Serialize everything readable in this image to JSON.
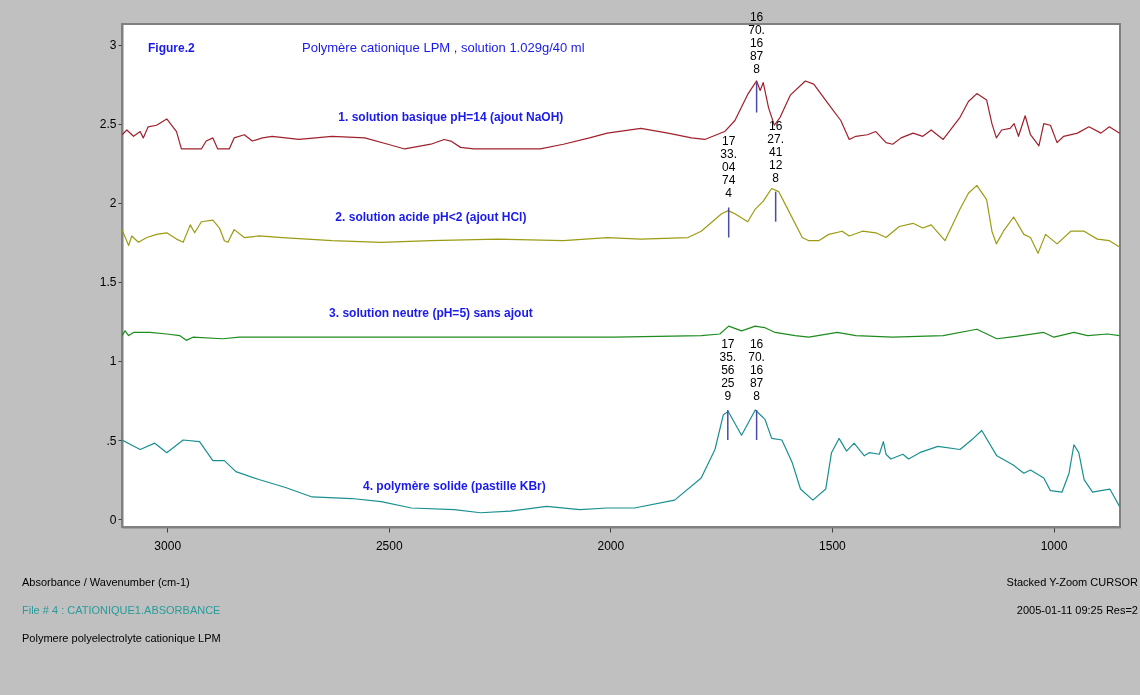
{
  "chart_data": {
    "type": "line",
    "title": "Figure.2",
    "subtitle": "Polymère cationique LPM , solution 1.029g/40 ml",
    "xlim": [
      3102,
      850
    ],
    "ylim": [
      -0.05,
      3.13
    ],
    "xticks": [
      3000,
      2500,
      2000,
      1500,
      1000
    ],
    "yticks": [
      0,
      {
        "value": 0.5,
        "label": ".5"
      },
      1,
      1.5,
      2,
      2.5,
      3
    ],
    "grid": false,
    "legend": false,
    "marker": "none",
    "line_style": "solid",
    "series": [
      {
        "name": "1. solution basique pH=14 (ajout NaOH)",
        "color": "#a0202c",
        "x": [
          3102,
          3091,
          3076,
          3061,
          3054,
          3043,
          3024,
          3001,
          2979,
          2968,
          2923,
          2912,
          2897,
          2886,
          2860,
          2849,
          2826,
          2808,
          2785,
          2763,
          2703,
          2628,
          2554,
          2502,
          2464,
          2405,
          2375,
          2360,
          2338,
          2308,
          2158,
          2106,
          2047,
          2007,
          1931,
          1870,
          1817,
          1787,
          1742,
          1719,
          1689,
          1670,
          1662,
          1655,
          1643,
          1630,
          1617,
          1594,
          1560,
          1541,
          1507,
          1480,
          1461,
          1446,
          1420,
          1401,
          1378,
          1363,
          1344,
          1317,
          1295,
          1276,
          1249,
          1211,
          1192,
          1173,
          1151,
          1139,
          1129,
          1117,
          1098,
          1089,
          1079,
          1064,
          1052,
          1033,
          1022,
          1007,
          992,
          977,
          946,
          920,
          893,
          874,
          851
        ],
        "values": [
          2.43,
          2.46,
          2.42,
          2.45,
          2.41,
          2.48,
          2.49,
          2.53,
          2.45,
          2.34,
          2.34,
          2.39,
          2.41,
          2.34,
          2.34,
          2.41,
          2.43,
          2.39,
          2.41,
          2.42,
          2.4,
          2.42,
          2.41,
          2.37,
          2.34,
          2.37,
          2.4,
          2.39,
          2.35,
          2.34,
          2.34,
          2.37,
          2.41,
          2.44,
          2.47,
          2.44,
          2.41,
          2.4,
          2.45,
          2.52,
          2.69,
          2.77,
          2.71,
          2.76,
          2.6,
          2.49,
          2.54,
          2.68,
          2.77,
          2.75,
          2.62,
          2.52,
          2.4,
          2.42,
          2.43,
          2.45,
          2.38,
          2.37,
          2.41,
          2.44,
          2.42,
          2.46,
          2.4,
          2.54,
          2.64,
          2.69,
          2.65,
          2.5,
          2.41,
          2.46,
          2.47,
          2.5,
          2.42,
          2.55,
          2.43,
          2.36,
          2.5,
          2.49,
          2.38,
          2.42,
          2.44,
          2.48,
          2.44,
          2.48,
          2.44
        ]
      },
      {
        "name": "2. solution acide pH<2  (ajout HCl)",
        "color": "#9c9c14",
        "x": [
          3102,
          3087,
          3080,
          3065,
          3046,
          3024,
          3001,
          2979,
          2964,
          2948,
          2938,
          2923,
          2897,
          2882,
          2871,
          2863,
          2849,
          2826,
          2793,
          2740,
          2628,
          2517,
          2405,
          2255,
          2106,
          2007,
          1931,
          1825,
          1795,
          1749,
          1734,
          1719,
          1690,
          1673,
          1655,
          1636,
          1620,
          1598,
          1567,
          1552,
          1530,
          1507,
          1477,
          1461,
          1431,
          1401,
          1378,
          1348,
          1317,
          1295,
          1276,
          1245,
          1211,
          1192,
          1173,
          1151,
          1139,
          1129,
          1113,
          1090,
          1067,
          1052,
          1035,
          1018,
          992,
          961,
          931,
          901,
          874,
          851
        ],
        "values": [
          1.83,
          1.73,
          1.79,
          1.75,
          1.78,
          1.8,
          1.81,
          1.77,
          1.75,
          1.86,
          1.81,
          1.88,
          1.89,
          1.84,
          1.76,
          1.75,
          1.83,
          1.78,
          1.79,
          1.78,
          1.76,
          1.75,
          1.76,
          1.77,
          1.76,
          1.78,
          1.77,
          1.78,
          1.82,
          1.93,
          1.95,
          1.93,
          1.88,
          1.96,
          2.01,
          2.09,
          2.07,
          1.95,
          1.78,
          1.76,
          1.76,
          1.8,
          1.82,
          1.79,
          1.82,
          1.81,
          1.78,
          1.85,
          1.87,
          1.84,
          1.86,
          1.76,
          1.96,
          2.06,
          2.11,
          2.02,
          1.82,
          1.74,
          1.82,
          1.91,
          1.8,
          1.78,
          1.68,
          1.8,
          1.74,
          1.82,
          1.82,
          1.77,
          1.76,
          1.72
        ]
      },
      {
        "name": "3. solution neutre (pH=5) sans ajout",
        "color": "#1e8c1e",
        "x": [
          3102,
          3095,
          3087,
          3076,
          3039,
          3001,
          2972,
          2957,
          2942,
          2875,
          2837,
          2703,
          2405,
          2181,
          1991,
          1795,
          1753,
          1733,
          1704,
          1673,
          1651,
          1628,
          1583,
          1552,
          1488,
          1446,
          1363,
          1249,
          1173,
          1128,
          1098,
          1022,
          999,
          954,
          923,
          878,
          851
        ],
        "values": [
          1.16,
          1.19,
          1.16,
          1.18,
          1.18,
          1.17,
          1.16,
          1.13,
          1.15,
          1.14,
          1.15,
          1.15,
          1.15,
          1.15,
          1.15,
          1.16,
          1.17,
          1.22,
          1.19,
          1.22,
          1.21,
          1.18,
          1.16,
          1.15,
          1.18,
          1.16,
          1.15,
          1.16,
          1.2,
          1.14,
          1.15,
          1.18,
          1.15,
          1.18,
          1.16,
          1.17,
          1.16
        ]
      },
      {
        "name": "4. polymère solide (pastille KBr)",
        "color": "#1a9090",
        "x": [
          3102,
          3061,
          3028,
          3001,
          2964,
          2927,
          2897,
          2871,
          2845,
          2793,
          2733,
          2673,
          2584,
          2517,
          2449,
          2352,
          2293,
          2226,
          2144,
          2069,
          2007,
          1946,
          1855,
          1795,
          1764,
          1745,
          1734,
          1704,
          1673,
          1651,
          1636,
          1613,
          1590,
          1571,
          1543,
          1514,
          1501,
          1484,
          1467,
          1450,
          1427,
          1416,
          1393,
          1384,
          1378,
          1367,
          1340,
          1327,
          1302,
          1261,
          1211,
          1181,
          1162,
          1128,
          1090,
          1067,
          1052,
          1022,
          1007,
          981,
          965,
          954,
          943,
          931,
          912,
          893,
          873,
          851
        ],
        "values": [
          0.5,
          0.44,
          0.48,
          0.42,
          0.5,
          0.49,
          0.37,
          0.37,
          0.3,
          0.25,
          0.2,
          0.14,
          0.13,
          0.11,
          0.07,
          0.06,
          0.04,
          0.05,
          0.08,
          0.06,
          0.07,
          0.07,
          0.12,
          0.26,
          0.44,
          0.66,
          0.68,
          0.53,
          0.69,
          0.63,
          0.51,
          0.5,
          0.36,
          0.19,
          0.12,
          0.19,
          0.42,
          0.51,
          0.43,
          0.48,
          0.4,
          0.42,
          0.41,
          0.49,
          0.41,
          0.38,
          0.41,
          0.38,
          0.42,
          0.46,
          0.44,
          0.51,
          0.56,
          0.4,
          0.34,
          0.29,
          0.31,
          0.26,
          0.18,
          0.17,
          0.29,
          0.47,
          0.42,
          0.25,
          0.17,
          0.18,
          0.19,
          0.08
        ]
      }
    ],
    "annotations": [
      {
        "text": "1670.16878",
        "x": 1670,
        "y": 2.76
      },
      {
        "text": "1733.04744",
        "x": 1733,
        "y": 1.97
      },
      {
        "text": "1627.41128",
        "x": 1627,
        "y": 2.07
      },
      {
        "text": "1735.56259",
        "x": 1735,
        "y": 0.69
      },
      {
        "text": "1670.16878",
        "x": 1670,
        "y": 0.69
      },
      "Absorbance / Wavenumber (cm-1)",
      "Stacked Y-Zoom CURSOR",
      "File # 4 : CATIONIQUE1.ABSORBANCE",
      "2005-01-11  09:25  Res=2",
      "Polymere polyelectrolyte cationique  LPM"
    ]
  }
}
